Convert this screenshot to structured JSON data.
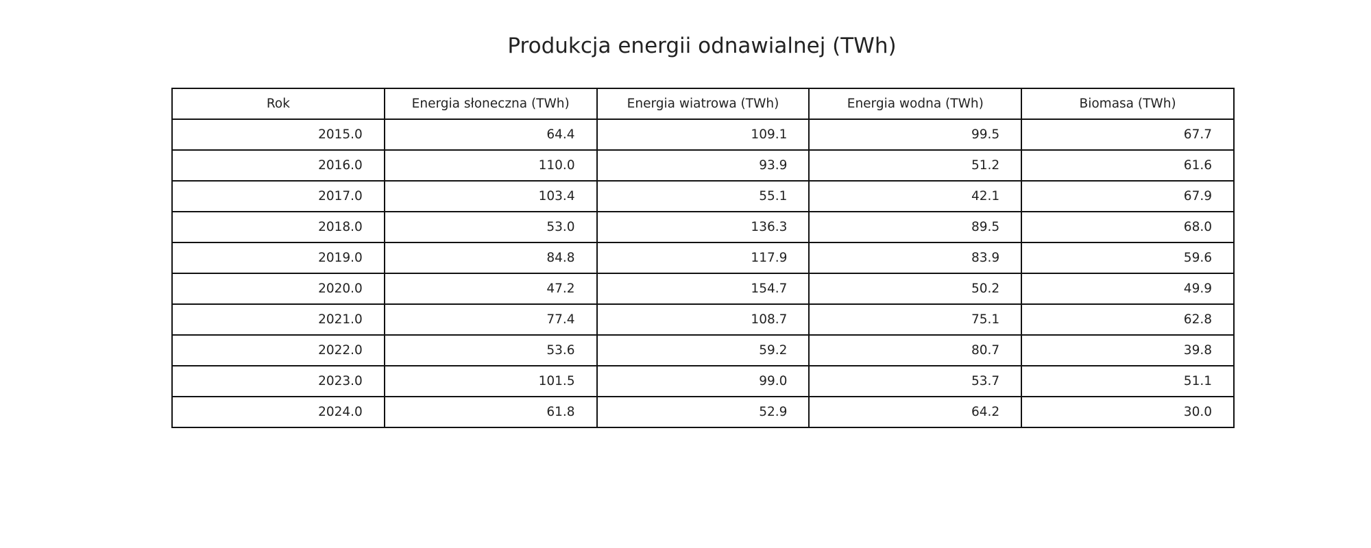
{
  "title": "Produkcja energii odnawialnej (TWh)",
  "chart_data": {
    "type": "table",
    "title": "Produkcja energii odnawialnej (TWh)",
    "columns": [
      "Rok",
      "Energia słoneczna (TWh)",
      "Energia wiatrowa (TWh)",
      "Energia wodna (TWh)",
      "Biomasa (TWh)"
    ],
    "rows": [
      [
        "2015.0",
        "64.4",
        "109.1",
        "99.5",
        "67.7"
      ],
      [
        "2016.0",
        "110.0",
        "93.9",
        "51.2",
        "61.6"
      ],
      [
        "2017.0",
        "103.4",
        "55.1",
        "42.1",
        "67.9"
      ],
      [
        "2018.0",
        "53.0",
        "136.3",
        "89.5",
        "68.0"
      ],
      [
        "2019.0",
        "84.8",
        "117.9",
        "83.9",
        "59.6"
      ],
      [
        "2020.0",
        "47.2",
        "154.7",
        "50.2",
        "49.9"
      ],
      [
        "2021.0",
        "77.4",
        "108.7",
        "75.1",
        "62.8"
      ],
      [
        "2022.0",
        "53.6",
        "59.2",
        "80.7",
        "39.8"
      ],
      [
        "2023.0",
        "101.5",
        "99.0",
        "53.7",
        "51.1"
      ],
      [
        "2024.0",
        "61.8",
        "52.9",
        "64.2",
        "30.0"
      ]
    ]
  }
}
